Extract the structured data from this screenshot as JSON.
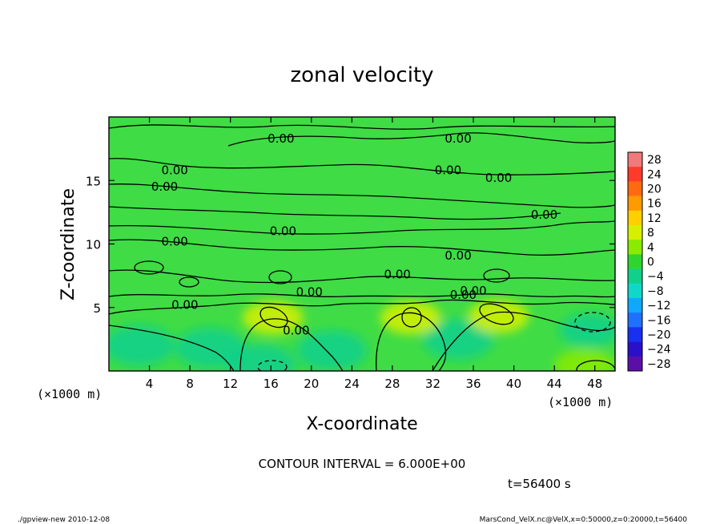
{
  "chart_data": {
    "type": "heatmap",
    "title": "zonal velocity",
    "xlabel": "X-coordinate",
    "ylabel": "Z-coordinate",
    "x_units": "(×1000 m)",
    "y_units": "(×1000 m)",
    "xlim": [
      0,
      50
    ],
    "ylim": [
      0,
      20
    ],
    "x_ticks": [
      "4",
      "8",
      "12",
      "16",
      "20",
      "24",
      "28",
      "32",
      "36",
      "40",
      "44",
      "48"
    ],
    "y_ticks": [
      "5",
      "10",
      "15"
    ],
    "contour_interval_text": "CONTOUR INTERVAL = 6.000E+00",
    "time_text": "t=56400 s",
    "contour_label": "0.00",
    "colorbar": {
      "levels": [
        "28",
        "24",
        "20",
        "16",
        "12",
        "8",
        "4",
        "0",
        "−4",
        "−8",
        "−12",
        "−16",
        "−20",
        "−24",
        "−28"
      ],
      "colors": [
        "#f07a7a",
        "#ff3a2a",
        "#ff6a10",
        "#ff9a00",
        "#ffd000",
        "#d7f000",
        "#8aeb00",
        "#2fd52f",
        "#10d08c",
        "#10d8c8",
        "#10a8ff",
        "#2070ff",
        "#1830f0",
        "#2a10c8",
        "#5a10a8"
      ]
    },
    "field": {
      "background_color": "#3fdc45",
      "warm_blobs": [
        {
          "x": 16.2,
          "z": 4.2,
          "value": 6
        },
        {
          "x": 29.8,
          "z": 4.2,
          "value": 6
        },
        {
          "x": 38.5,
          "z": 4.3,
          "value": 6
        },
        {
          "x": 47.0,
          "z": 0.4,
          "value": 5
        }
      ],
      "cool_blobs": [
        {
          "x": 3.0,
          "z": 2.0,
          "value": -4
        },
        {
          "x": 10.0,
          "z": 1.8,
          "value": -3
        },
        {
          "x": 22.0,
          "z": 1.6,
          "value": -4
        },
        {
          "x": 34.5,
          "z": 2.5,
          "value": -3
        },
        {
          "x": 47.5,
          "z": 3.2,
          "value": -6
        },
        {
          "x": 15.0,
          "z": 0.5,
          "value": -3
        }
      ],
      "zero_label_positions": [
        {
          "x": 17.0,
          "z": 18.3
        },
        {
          "x": 34.5,
          "z": 18.3
        },
        {
          "x": 6.5,
          "z": 15.8
        },
        {
          "x": 5.5,
          "z": 14.5
        },
        {
          "x": 33.5,
          "z": 15.8
        },
        {
          "x": 38.5,
          "z": 15.2
        },
        {
          "x": 43.0,
          "z": 12.3
        },
        {
          "x": 17.2,
          "z": 11.0
        },
        {
          "x": 6.5,
          "z": 10.2
        },
        {
          "x": 34.5,
          "z": 9.1
        },
        {
          "x": 28.5,
          "z": 7.6
        },
        {
          "x": 19.8,
          "z": 6.2
        },
        {
          "x": 36.0,
          "z": 6.3
        },
        {
          "x": 35.0,
          "z": 6.0
        },
        {
          "x": 7.5,
          "z": 5.2
        },
        {
          "x": 18.5,
          "z": 3.2
        }
      ]
    }
  },
  "footer": {
    "left": "./gpview-new   2010-12-08",
    "right": "MarsCond_VelX.nc@VelX,x=0:50000,z=0:20000,t=56400"
  }
}
